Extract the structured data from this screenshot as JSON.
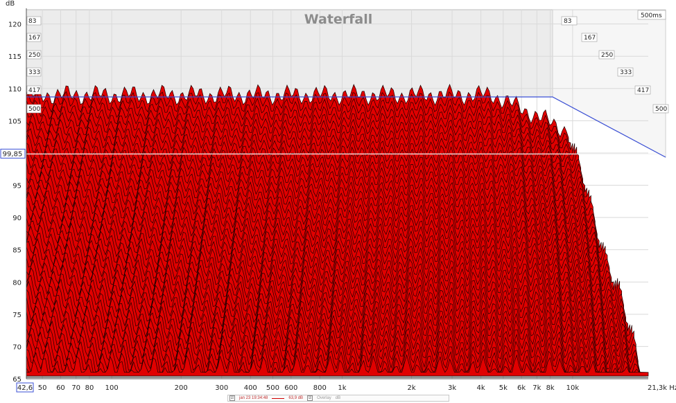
{
  "chart_data": {
    "type": "area",
    "title": "Waterfall",
    "ylabel": "dB",
    "xunit": "Hz",
    "ylim": [
      65,
      122
    ],
    "y_ticks": [
      65,
      70,
      75,
      80,
      85,
      90,
      95,
      100,
      105,
      110,
      115,
      120
    ],
    "y_tick_labels": [
      "65",
      "70",
      "75",
      "80",
      "85",
      "90",
      "95",
      "",
      "105",
      "110",
      "115",
      "120"
    ],
    "x_scale": "log",
    "xlim": [
      42.6,
      21300
    ],
    "x_ticks": [
      50,
      60,
      70,
      80,
      100,
      200,
      300,
      400,
      500,
      600,
      800,
      1000,
      2000,
      3000,
      4000,
      5000,
      6000,
      7000,
      8000,
      10000
    ],
    "x_tick_labels": [
      "50",
      "60",
      "70",
      "80",
      "100",
      "200",
      "300",
      "400",
      "500",
      "600",
      "800",
      "1k",
      "2k",
      "3k",
      "4k",
      "5k",
      "6k",
      "7k",
      "8k",
      "10k"
    ],
    "x_min_readout": "42,6",
    "x_max_label": "21,3k Hz",
    "cursor_db": 99.85,
    "cursor_label": "99,85",
    "time_slices_ms": [
      "83",
      "167",
      "250",
      "333",
      "417",
      "500"
    ],
    "time_end_label": "500ms",
    "series_color": "#e00000",
    "grid": true,
    "peak_level_db": 109,
    "floor_level_db": 66
  },
  "legend": {
    "checkbox": "☑",
    "date": "jan 23 19:34:48",
    "level": "63,9 dB",
    "overlay": "Overlay",
    "unit": "dB"
  }
}
